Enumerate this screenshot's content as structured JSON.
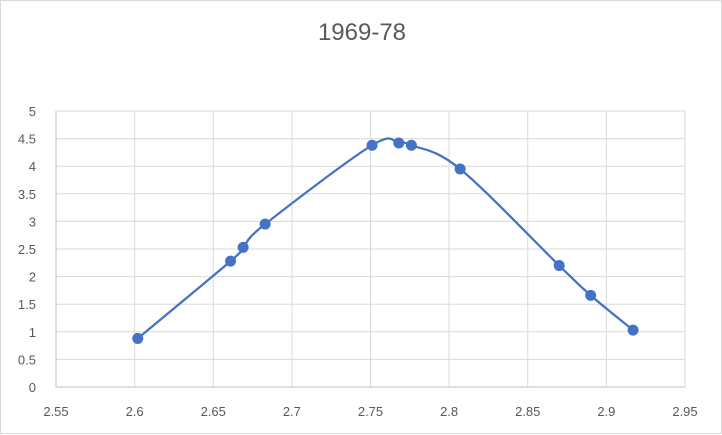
{
  "chart_data": {
    "type": "scatter",
    "title": "1969-78",
    "xlabel": "",
    "ylabel": "",
    "xlim": [
      2.55,
      2.95
    ],
    "ylim": [
      0,
      5
    ],
    "xticks": [
      "2.55",
      "2.6",
      "2.65",
      "2.7",
      "2.75",
      "2.8",
      "2.85",
      "2.9",
      "2.95"
    ],
    "yticks": [
      "0",
      "0.5",
      "1",
      "1.5",
      "2",
      "2.5",
      "3",
      "3.5",
      "4",
      "4.5",
      "5"
    ],
    "grid": true,
    "legend": "none",
    "line_style": "smoothed",
    "series": [
      {
        "color": "#4472c4",
        "x": [
          2.602,
          2.661,
          2.669,
          2.683,
          2.751,
          2.768,
          2.776,
          2.807,
          2.87,
          2.89,
          2.917
        ],
        "y": [
          0.88,
          2.28,
          2.53,
          2.95,
          4.38,
          4.42,
          4.38,
          3.95,
          2.2,
          1.66,
          1.03
        ]
      }
    ]
  }
}
